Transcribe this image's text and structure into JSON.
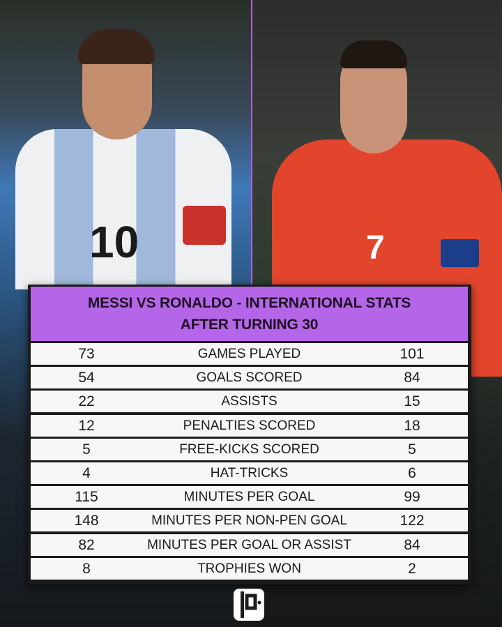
{
  "title": {
    "line1": "MESSI VS RONALDO - INTERNATIONAL STATS",
    "line2": "AFTER TURNING 30"
  },
  "players": {
    "left": {
      "shirt_number": "10"
    },
    "right": {
      "shirt_number": "7"
    }
  },
  "rows": [
    {
      "left": "73",
      "label": "GAMES PLAYED",
      "right": "101"
    },
    {
      "left": "54",
      "label": "GOALS SCORED",
      "right": "84"
    },
    {
      "left": "22",
      "label": "ASSISTS",
      "right": "15"
    },
    {
      "left": "12",
      "label": "PENALTIES SCORED",
      "right": "18"
    },
    {
      "left": "5",
      "label": "FREE-KICKS SCORED",
      "right": "5"
    },
    {
      "left": "4",
      "label": "HAT-TRICKS",
      "right": "6"
    },
    {
      "left": "115",
      "label": "MINUTES PER GOAL",
      "right": "99"
    },
    {
      "left": "148",
      "label": "MINUTES PER NON-PEN GOAL",
      "right": "122"
    },
    {
      "left": "82",
      "label": "MINUTES PER GOAL OR ASSIST",
      "right": "84"
    },
    {
      "left": "8",
      "label": "TROPHIES WON",
      "right": "2"
    }
  ],
  "colors": {
    "header": "#b566e8",
    "row": "#f7f7f7",
    "divider": "#b060e0"
  },
  "logo": {
    "icon": "publisher-logo-icon"
  }
}
